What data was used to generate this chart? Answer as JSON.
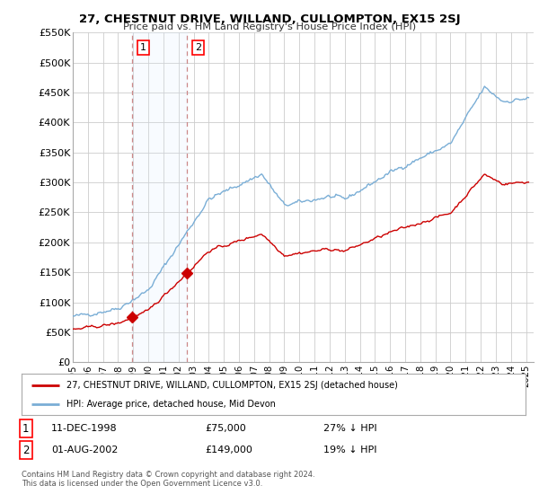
{
  "title": "27, CHESTNUT DRIVE, WILLAND, CULLOMPTON, EX15 2SJ",
  "subtitle": "Price paid vs. HM Land Registry's House Price Index (HPI)",
  "ylim": [
    0,
    550000
  ],
  "yticks": [
    0,
    50000,
    100000,
    150000,
    200000,
    250000,
    300000,
    350000,
    400000,
    450000,
    500000,
    550000
  ],
  "ytick_labels": [
    "£0",
    "£50K",
    "£100K",
    "£150K",
    "£200K",
    "£250K",
    "£300K",
    "£350K",
    "£400K",
    "£450K",
    "£500K",
    "£550K"
  ],
  "xlim_start": 1995.0,
  "xlim_end": 2025.5,
  "sale1_x": 1998.95,
  "sale1_y": 75000,
  "sale1_label": "1",
  "sale1_date": "11-DEC-1998",
  "sale1_price": "£75,000",
  "sale1_hpi": "27% ↓ HPI",
  "sale2_x": 2002.58,
  "sale2_y": 149000,
  "sale2_label": "2",
  "sale2_date": "01-AUG-2002",
  "sale2_price": "£149,000",
  "sale2_hpi": "19% ↓ HPI",
  "legend_line1": "27, CHESTNUT DRIVE, WILLAND, CULLOMPTON, EX15 2SJ (detached house)",
  "legend_line2": "HPI: Average price, detached house, Mid Devon",
  "copyright": "Contains HM Land Registry data © Crown copyright and database right 2024.\nThis data is licensed under the Open Government Licence v3.0.",
  "hpi_color": "#7aaed6",
  "property_color": "#cc0000",
  "bg_color": "#ffffff",
  "grid_color": "#cccccc",
  "shade_color": "#ddeeff",
  "vline_color": "#cc0000"
}
